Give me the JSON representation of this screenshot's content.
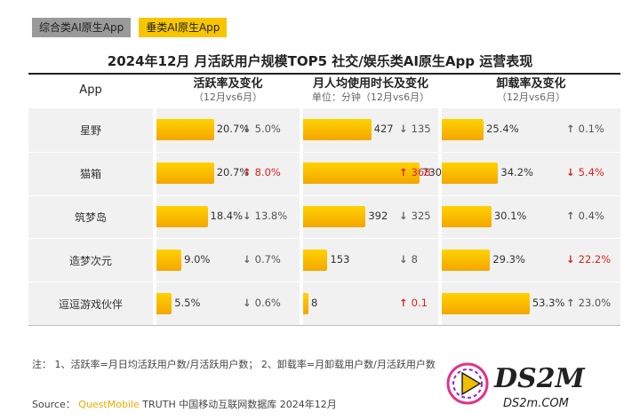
{
  "tabs": [
    {
      "label": "综合类AI原生App"
    },
    {
      "label": "垂类AI原生App"
    }
  ],
  "title": "2024年12月 月活跃用户规模TOP5 社交/娱乐类AI原生App 运营表现",
  "headers": {
    "app": "App",
    "active": {
      "title": "活跃率及变化",
      "sub": "（12月vs6月）"
    },
    "usage": {
      "title": "月人均使用时长及变化",
      "sub": "单位：分钟（12月vs6月）"
    },
    "uninstall": {
      "title": "卸载率及变化",
      "sub": "（12月vs6月）"
    }
  },
  "colors": {
    "bar": "#f7b500",
    "up": "#e02020",
    "down_text": "#555555",
    "gray_arrow": "#666666"
  },
  "chart_data": {
    "type": "table",
    "rows": [
      {
        "app": "星野",
        "active": {
          "value": 20.7,
          "label": "20.7%",
          "change": "5.0%",
          "dir": "down",
          "red": false
        },
        "usage": {
          "value": 427,
          "label": "427",
          "change": "135",
          "dir": "down",
          "red": false
        },
        "uninstall": {
          "value": 25.4,
          "label": "25.4%",
          "change": "0.1%",
          "dir": "up",
          "red": false
        }
      },
      {
        "app": "猫箱",
        "active": {
          "value": 20.7,
          "label": "20.7%",
          "change": "8.0%",
          "dir": "up",
          "red": true
        },
        "usage": {
          "value": 730,
          "label": "730",
          "change": "368",
          "dir": "up",
          "red": true
        },
        "uninstall": {
          "value": 34.2,
          "label": "34.2%",
          "change": "5.4%",
          "dir": "down",
          "red": true
        }
      },
      {
        "app": "筑梦岛",
        "active": {
          "value": 18.4,
          "label": "18.4%",
          "change": "13.8%",
          "dir": "down",
          "red": false
        },
        "usage": {
          "value": 392,
          "label": "392",
          "change": "325",
          "dir": "down",
          "red": false
        },
        "uninstall": {
          "value": 30.1,
          "label": "30.1%",
          "change": "0.4%",
          "dir": "up",
          "red": false
        }
      },
      {
        "app": "造梦次元",
        "active": {
          "value": 9.0,
          "label": "9.0%",
          "change": "0.7%",
          "dir": "down",
          "red": false
        },
        "usage": {
          "value": 153,
          "label": "153",
          "change": "8",
          "dir": "down",
          "red": false
        },
        "uninstall": {
          "value": 29.3,
          "label": "29.3%",
          "change": "22.2%",
          "dir": "down",
          "red": true
        }
      },
      {
        "app": "逗逗游戏伙伴",
        "active": {
          "value": 5.5,
          "label": "5.5%",
          "change": "0.6%",
          "dir": "down",
          "red": false
        },
        "usage": {
          "value": 8,
          "label": "8",
          "change": "0.1",
          "dir": "up",
          "red": true
        },
        "uninstall": {
          "value": 53.3,
          "label": "53.3%",
          "change": "23.0%",
          "dir": "up",
          "red": false
        }
      }
    ]
  },
  "note": "注： 1、活跃率=月日均活跃用户数/月活跃用户数； 2、卸载率=月卸载用户数/月活跃用户数",
  "source": {
    "prefix": "Source： ",
    "brand": "QuestMobile",
    "rest": " TRUTH 中国移动互联网数据库 2024年12月"
  },
  "logo": {
    "text": "DS2M",
    "domain": "DS2m.COM"
  }
}
